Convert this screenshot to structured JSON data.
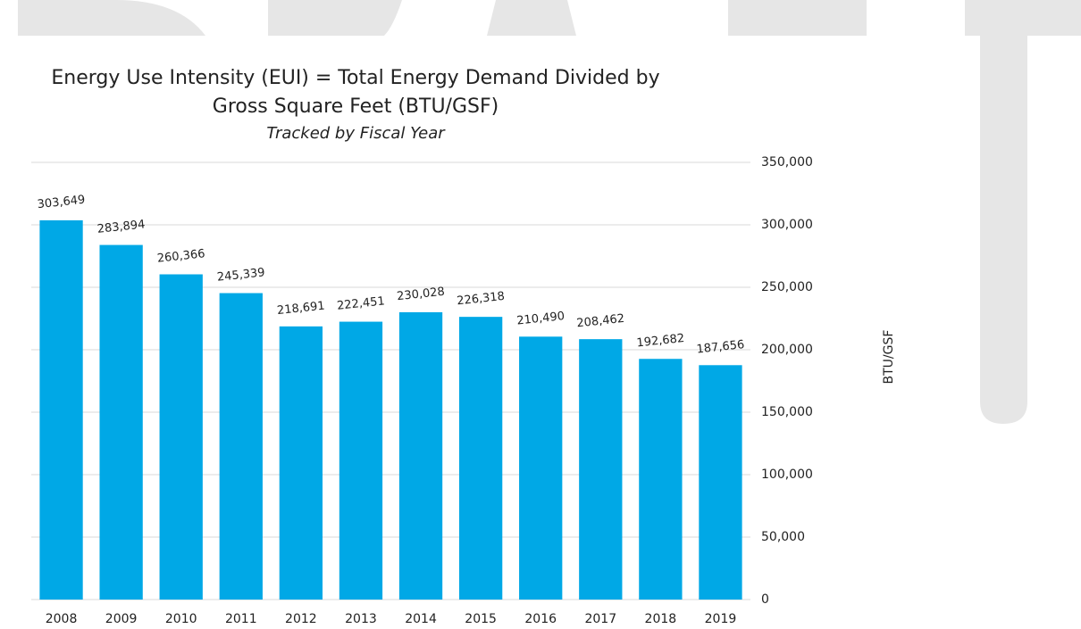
{
  "chart_data": {
    "type": "bar",
    "title": [
      "Energy Use Intensity (EUI) = Total Energy Demand Divided by",
      "Gross Square Feet (BTU/GSF)"
    ],
    "subtitle": "Tracked by Fiscal Year",
    "y_label": "BTU/GSF",
    "categories": [
      "2008",
      "2009",
      "2010",
      "2011",
      "2012",
      "2013",
      "2014",
      "2015",
      "2016",
      "2017",
      "2018",
      "2019"
    ],
    "values": [
      303649,
      283894,
      260366,
      245339,
      218691,
      222451,
      230028,
      226318,
      210490,
      208462,
      192682,
      187656
    ],
    "value_labels": [
      "303,649",
      "283,894",
      "260,366",
      "245,339",
      "218,691",
      "222,451",
      "230,028",
      "226,318",
      "210,490",
      "208,462",
      "192,682",
      "187,656"
    ],
    "color": "#00a8e6",
    "ylim": [
      0,
      350000
    ],
    "yticks": [
      0,
      {
        "value": 50000,
        "label": "50,000"
      },
      {
        "value": 100000,
        "label": "100,000"
      },
      {
        "value": 150000,
        "label": "150,000"
      },
      {
        "value": 200000,
        "label": "200,000"
      },
      {
        "value": 250000,
        "label": "250,000"
      },
      {
        "value": 300000,
        "label": "300,000"
      },
      {
        "value": 350000,
        "label": "350,000"
      }
    ],
    "grid": true,
    "y_axis_side": "right"
  }
}
